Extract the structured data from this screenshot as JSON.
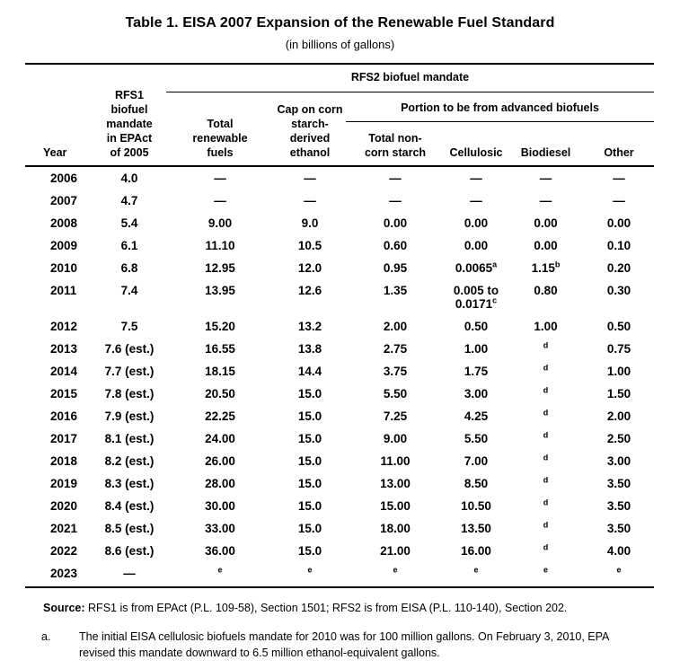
{
  "title": "Table 1. EISA 2007 Expansion of the Renewable Fuel Standard",
  "subtitle": "(in billions of gallons)",
  "table": {
    "group_headers": {
      "rfs2": "RFS2 biofuel mandate",
      "advanced": "Portion to be from advanced biofuels"
    },
    "columns": [
      "Year",
      "RFS1\nbiofuel\nmandate\nin EPAct\nof 2005",
      "Total\nrenewable\nfuels",
      "Cap on corn\nstarch-\nderived\nethanol",
      "Total non-\ncorn starch",
      "Cellulosic",
      "Biodiesel",
      "Other"
    ],
    "rows": [
      [
        "2006",
        "4.0",
        "—",
        "—",
        "—",
        "—",
        "—",
        "—"
      ],
      [
        "2007",
        "4.7",
        "—",
        "—",
        "—",
        "—",
        "—",
        "—"
      ],
      [
        "2008",
        "5.4",
        "9.00",
        "9.0",
        "0.00",
        "0.00",
        "0.00",
        "0.00"
      ],
      [
        "2009",
        "6.1",
        "11.10",
        "10.5",
        "0.60",
        "0.00",
        "0.00",
        "0.10"
      ],
      [
        "2010",
        "6.8",
        "12.95",
        "12.0",
        "0.95",
        "0.0065^a",
        "1.15^b",
        "0.20"
      ],
      [
        "2011",
        "7.4",
        "13.95",
        "12.6",
        "1.35",
        "0.005 to 0.0171^c",
        "0.80",
        "0.30"
      ],
      [
        "2012",
        "7.5",
        "15.20",
        "13.2",
        "2.00",
        "0.50",
        "1.00",
        "0.50"
      ],
      [
        "2013",
        "7.6 (est.)",
        "16.55",
        "13.8",
        "2.75",
        "1.00",
        "^d",
        "0.75"
      ],
      [
        "2014",
        "7.7 (est.)",
        "18.15",
        "14.4",
        "3.75",
        "1.75",
        "^d",
        "1.00"
      ],
      [
        "2015",
        "7.8 (est.)",
        "20.50",
        "15.0",
        "5.50",
        "3.00",
        "^d",
        "1.50"
      ],
      [
        "2016",
        "7.9 (est.)",
        "22.25",
        "15.0",
        "7.25",
        "4.25",
        "^d",
        "2.00"
      ],
      [
        "2017",
        "8.1 (est.)",
        "24.00",
        "15.0",
        "9.00",
        "5.50",
        "^d",
        "2.50"
      ],
      [
        "2018",
        "8.2 (est.)",
        "26.00",
        "15.0",
        "11.00",
        "7.00",
        "^d",
        "3.00"
      ],
      [
        "2019",
        "8.3 (est.)",
        "28.00",
        "15.0",
        "13.00",
        "8.50",
        "^d",
        "3.50"
      ],
      [
        "2020",
        "8.4 (est.)",
        "30.00",
        "15.0",
        "15.00",
        "10.50",
        "^d",
        "3.50"
      ],
      [
        "2021",
        "8.5 (est.)",
        "33.00",
        "15.0",
        "18.00",
        "13.50",
        "^d",
        "3.50"
      ],
      [
        "2022",
        "8.6 (est.)",
        "36.00",
        "15.0",
        "21.00",
        "16.00",
        "^d",
        "4.00"
      ],
      [
        "2023",
        "—",
        "^e",
        "^e",
        "^e",
        "^e",
        "^e",
        "^e"
      ]
    ]
  },
  "footer": {
    "source_label": "Source:",
    "source_text": "RFS1 is from EPAct (P.L. 109-58), Section 1501; RFS2 is from EISA (P.L. 110-140), Section 202.",
    "footnote_a_marker": "a.",
    "footnote_a_text": "The initial EISA cellulosic biofuels mandate for 2010 was for 100 million gallons. On February 3, 2010, EPA revised this mandate downward to 6.5 million ethanol-equivalent gallons."
  }
}
